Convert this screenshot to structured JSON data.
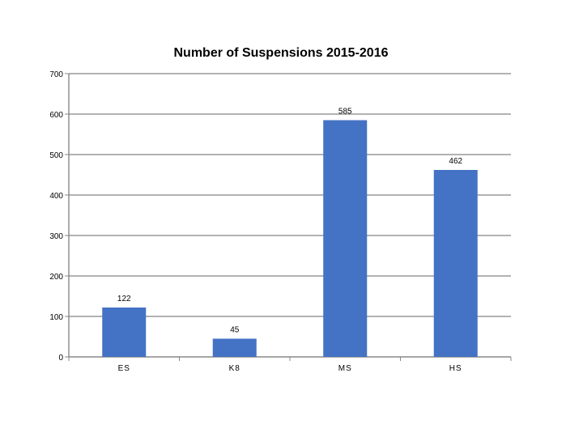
{
  "chart_data": {
    "type": "bar",
    "title": "Number of Suspensions 2015-2016",
    "categories": [
      "ES",
      "K8",
      "MS",
      "HS"
    ],
    "values": [
      122,
      45,
      585,
      462
    ],
    "data_labels": [
      "122",
      "45",
      "585",
      "462"
    ],
    "ylim": [
      0,
      700
    ],
    "y_ticks": [
      0,
      100,
      200,
      300,
      400,
      500,
      600,
      700
    ],
    "xlabel": "",
    "ylabel": "",
    "grid": true,
    "legend": "none",
    "bar_color": "#4472C4",
    "grid_color": "#999999"
  }
}
